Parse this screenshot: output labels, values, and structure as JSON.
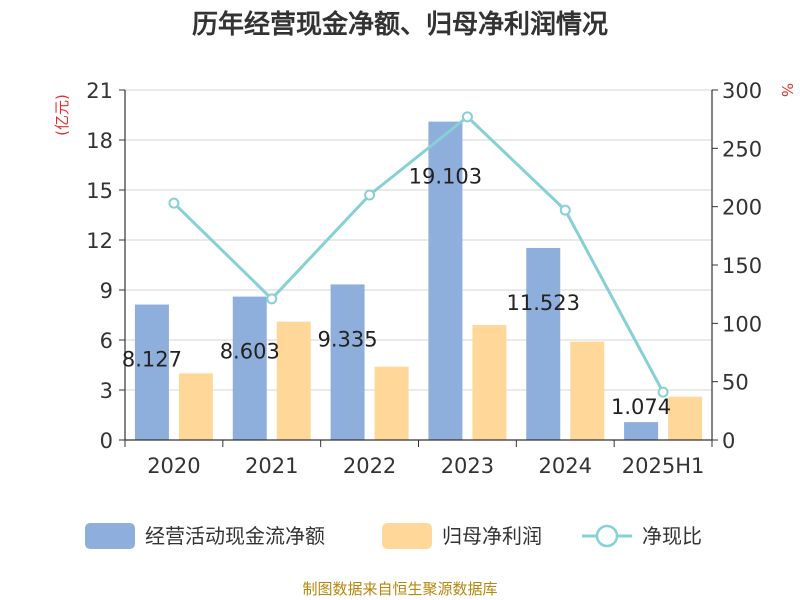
{
  "chart_data": {
    "type": "bar",
    "title": "历年经营现金净额、归母净利润情况",
    "categories": [
      "2020",
      "2021",
      "2022",
      "2023",
      "2024",
      "2025H1"
    ],
    "series": [
      {
        "name": "经营活动现金流净额",
        "kind": "bar",
        "axis": "left",
        "color": "#8eaedb",
        "values": [
          8.127,
          8.603,
          9.335,
          19.103,
          11.523,
          1.074
        ],
        "data_labels": [
          "8.127",
          "8.603",
          "9.335",
          "19.103",
          "11.523",
          "1.074"
        ]
      },
      {
        "name": "归母净利润",
        "kind": "bar",
        "axis": "left",
        "color": "#ffd899",
        "values": [
          4.0,
          7.1,
          4.4,
          6.9,
          5.9,
          2.6
        ]
      },
      {
        "name": "净现比",
        "kind": "line",
        "axis": "right",
        "color": "#86d0d6",
        "values": [
          203,
          121,
          210,
          277,
          197,
          41
        ]
      }
    ],
    "y_left": {
      "label": "(亿元)",
      "label_color": "#e03030",
      "min": 0,
      "max": 21,
      "ticks": [
        "0",
        "3",
        "6",
        "9",
        "12",
        "15",
        "18",
        "21"
      ]
    },
    "y_right": {
      "label": "%",
      "label_color": "#e03030",
      "min": 0,
      "max": 300,
      "ticks": [
        "0",
        "50",
        "100",
        "150",
        "200",
        "250",
        "300"
      ]
    },
    "grid": true,
    "legend_position": "bottom"
  },
  "source_note": "制图数据来自恒生聚源数据库",
  "source_color": "#b8860b"
}
